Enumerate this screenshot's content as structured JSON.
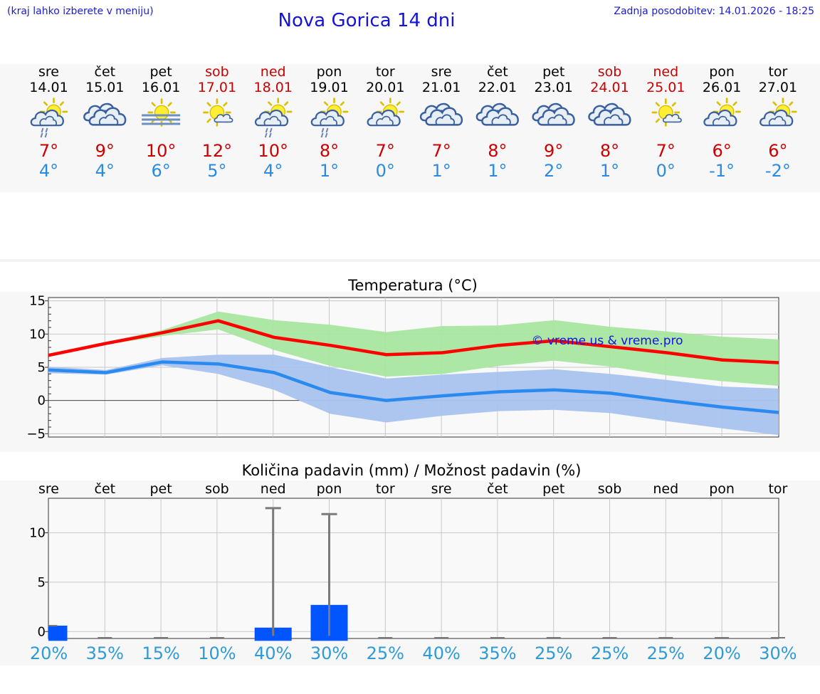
{
  "header": {
    "hint": "(kraj lahko izberete v meniju)",
    "title": "Nova Gorica 14 dni",
    "updated": "Zadnja posodobitev: 14.01.2026 - 18:25"
  },
  "colors": {
    "weekday": "#000000",
    "weekend": "#cc0000",
    "high": "#cc0000",
    "low": "#2a8be0",
    "max_line": "#ff0000",
    "min_line": "#2b8af0",
    "max_band": "#a8e6a0",
    "min_band": "#a8c3ef",
    "bar": "#0055ff",
    "percent": "#2f9ad6",
    "watermark": "#1414dc"
  },
  "forecast": [
    {
      "day": "sre",
      "date": "14.01",
      "weekend": false,
      "icon": "sun-cloud-rain-icon",
      "high": "7°",
      "low": "4°"
    },
    {
      "day": "čet",
      "date": "15.01",
      "weekend": false,
      "icon": "cloudy-icon",
      "high": "9°",
      "low": "4°"
    },
    {
      "day": "pet",
      "date": "16.01",
      "weekend": false,
      "icon": "sun-fog-icon",
      "high": "10°",
      "low": "6°"
    },
    {
      "day": "sob",
      "date": "17.01",
      "weekend": true,
      "icon": "sun-small-cloud-icon",
      "high": "12°",
      "low": "5°"
    },
    {
      "day": "ned",
      "date": "18.01",
      "weekend": true,
      "icon": "sun-cloud-rain-icon",
      "high": "10°",
      "low": "4°"
    },
    {
      "day": "pon",
      "date": "19.01",
      "weekend": false,
      "icon": "sun-cloud-rain-icon",
      "high": "8°",
      "low": "1°"
    },
    {
      "day": "tor",
      "date": "20.01",
      "weekend": false,
      "icon": "sun-cloud-icon",
      "high": "7°",
      "low": "0°"
    },
    {
      "day": "sre",
      "date": "21.01",
      "weekend": false,
      "icon": "cloudy-icon",
      "high": "7°",
      "low": "1°"
    },
    {
      "day": "čet",
      "date": "22.01",
      "weekend": false,
      "icon": "cloudy-icon",
      "high": "8°",
      "low": "1°"
    },
    {
      "day": "pet",
      "date": "23.01",
      "weekend": false,
      "icon": "cloudy-icon",
      "high": "9°",
      "low": "2°"
    },
    {
      "day": "sob",
      "date": "24.01",
      "weekend": true,
      "icon": "cloudy-icon",
      "high": "8°",
      "low": "1°"
    },
    {
      "day": "ned",
      "date": "25.01",
      "weekend": true,
      "icon": "sun-small-cloud-icon",
      "high": "7°",
      "low": "0°"
    },
    {
      "day": "pon",
      "date": "26.01",
      "weekend": false,
      "icon": "sun-cloud-icon",
      "high": "6°",
      "low": "-1°"
    },
    {
      "day": "tor",
      "date": "27.01",
      "weekend": false,
      "icon": "sun-cloud-icon",
      "high": "6°",
      "low": "-2°"
    }
  ],
  "chart_data": [
    {
      "type": "line",
      "title": "Temperatura (°C)",
      "ylim": [
        -5.5,
        15.5
      ],
      "yticks": [
        15,
        10,
        5,
        0,
        -5
      ],
      "ytick_labels": [
        "15",
        "10",
        "5",
        "0",
        "−5"
      ],
      "x_range": [
        -0.03,
        13.0
      ],
      "grid": true,
      "watermark": "© vreme.us & vreme.pro",
      "series": [
        {
          "name": "max",
          "x": [
            -0.03,
            1,
            2,
            3,
            4,
            5,
            6,
            7,
            8,
            9,
            10,
            11,
            12,
            13
          ],
          "values": [
            6.8,
            8.6,
            10.2,
            12.0,
            9.5,
            8.3,
            6.9,
            7.2,
            8.3,
            9.0,
            8.1,
            7.2,
            6.1,
            5.7
          ],
          "band_upper": [
            7.0,
            8.8,
            10.6,
            13.4,
            12.1,
            11.4,
            10.3,
            11.2,
            11.3,
            12.1,
            11.1,
            10.4,
            9.6,
            9.2
          ],
          "band_lower": [
            6.7,
            8.4,
            9.7,
            10.7,
            7.6,
            5.2,
            3.6,
            4.0,
            5.2,
            6.0,
            5.1,
            3.8,
            2.9,
            2.2
          ]
        },
        {
          "name": "min",
          "x": [
            -0.03,
            1,
            2,
            3,
            4,
            5,
            6,
            7,
            8,
            9,
            10,
            11,
            12,
            13
          ],
          "values": [
            4.6,
            4.2,
            5.8,
            5.5,
            4.2,
            1.2,
            0.0,
            0.7,
            1.3,
            1.6,
            1.1,
            0.0,
            -1.0,
            -1.8
          ],
          "band_upper": [
            5.1,
            4.6,
            6.4,
            6.9,
            6.9,
            5.0,
            3.3,
            3.9,
            4.3,
            4.7,
            4.0,
            3.1,
            2.1,
            1.8
          ],
          "band_lower": [
            4.1,
            3.9,
            5.3,
            4.0,
            1.6,
            -2.0,
            -3.3,
            -2.3,
            -1.6,
            -1.4,
            -1.9,
            -3.1,
            -4.2,
            -5.2
          ]
        }
      ]
    },
    {
      "type": "bar",
      "title": "Količina padavin (mm) / Možnost padavin (%)",
      "categories": [
        "sre",
        "čet",
        "pet",
        "sob",
        "ned",
        "pon",
        "tor",
        "sre",
        "čet",
        "pet",
        "sob",
        "ned",
        "pon",
        "tor"
      ],
      "values": [
        0.6,
        0,
        0,
        0,
        0.4,
        2.7,
        0,
        0,
        0,
        0,
        0,
        0,
        0,
        0
      ],
      "error_max": [
        0.6,
        0,
        0,
        0,
        12.5,
        11.9,
        0,
        0,
        0,
        0,
        0,
        0,
        0,
        0
      ],
      "percent": [
        "20%",
        "35%",
        "15%",
        "10%",
        "40%",
        "30%",
        "25%",
        "40%",
        "35%",
        "25%",
        "25%",
        "25%",
        "20%",
        "30%"
      ],
      "ylim": [
        -0.7,
        13.5
      ],
      "yticks": [
        10,
        5,
        0
      ],
      "ytick_labels": [
        "10",
        "5",
        "0"
      ],
      "grid": true
    }
  ]
}
